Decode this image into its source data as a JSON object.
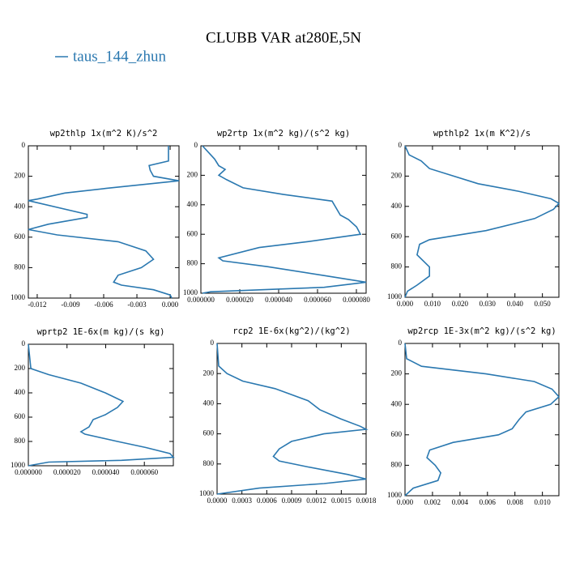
{
  "title": "CLUBB VAR at280E,5N",
  "legend": {
    "name": "taus_144_zhun",
    "color": "#2a78b0"
  },
  "chart_data": [
    {
      "type": "line",
      "title": "wp2thlp  1x(m^2 K)/s^2",
      "y": [
        0,
        100,
        130,
        160,
        200,
        230,
        280,
        310,
        350,
        360,
        450,
        470,
        515,
        550,
        585,
        630,
        690,
        745,
        800,
        850,
        895,
        915,
        945,
        980,
        1000
      ],
      "x": [
        -0.00015,
        -0.00015,
        -0.0019,
        -0.0018,
        -0.0015,
        0.0008,
        -0.0058,
        -0.0095,
        -0.012,
        -0.0128,
        -0.0075,
        -0.0075,
        -0.011,
        -0.0128,
        -0.0102,
        -0.0047,
        -0.0022,
        -0.0015,
        -0.0026,
        -0.0047,
        -0.0051,
        -0.0044,
        -0.0015,
        0,
        0.00015
      ],
      "xlim": [
        -0.0128,
        0.0008
      ],
      "xticks": [
        -0.012,
        -0.009,
        -0.006,
        -0.003,
        {
          "value": 0,
          "label": "0.000"
        }
      ],
      "ylim": [
        0,
        1000
      ],
      "yticks": [
        0,
        200,
        400,
        600,
        800,
        1000
      ],
      "yreverse": true
    },
    {
      "type": "line",
      "title": "wp2rtp  1x(m^2 kg)/(s^2 kg)",
      "y": [
        0,
        90,
        135,
        160,
        200,
        230,
        285,
        330,
        375,
        470,
        500,
        550,
        600,
        650,
        690,
        760,
        780,
        820,
        880,
        925,
        960,
        975,
        990,
        1000
      ],
      "x": [
        8e-07,
        7.1e-06,
        9.2e-06,
        1.25e-05,
        9.2e-06,
        1.33e-05,
        2.17e-05,
        4.25e-05,
        6.75e-05,
        7.17e-05,
        7.59e-05,
        8.01e-05,
        8.21e-05,
        5.5e-05,
        3e-05,
        9.2e-06,
        1.13e-05,
        3.42e-05,
        6.34e-05,
        8.5e-05,
        6.34e-05,
        3.42e-05,
        5e-06,
        8e-07
      ],
      "xlim": [
        0,
        8.5e-05
      ],
      "xticks": [
        {
          "value": 0,
          "label": "0.000000"
        },
        {
          "value": 2e-05,
          "label": "0.000020"
        },
        {
          "value": 4e-05,
          "label": "0.000040"
        },
        {
          "value": 6e-05,
          "label": "0.000060"
        },
        {
          "value": 8e-05,
          "label": "0.000080"
        }
      ],
      "ylim": [
        0,
        1000
      ],
      "yticks": [
        0,
        200,
        400,
        600,
        800,
        1000
      ],
      "yreverse": true
    },
    {
      "type": "line",
      "title": "wpthlp2  1x(m K^2)/s",
      "y": [
        0,
        60,
        100,
        150,
        250,
        300,
        350,
        380,
        420,
        480,
        560,
        620,
        650,
        720,
        800,
        860,
        920,
        960,
        1000
      ],
      "x": [
        0,
        0.0015,
        0.0059,
        0.0089,
        0.0266,
        0.0413,
        0.0531,
        0.056,
        0.054,
        0.0472,
        0.0295,
        0.0089,
        0.0053,
        0.0044,
        0.0089,
        0.0089,
        0.0044,
        0.0009,
        0
      ],
      "xlim": [
        0,
        0.056
      ],
      "xticks": [
        {
          "value": 0,
          "label": "0.000"
        },
        {
          "value": 0.01,
          "label": "0.010"
        },
        {
          "value": 0.02,
          "label": "0.020"
        },
        {
          "value": 0.03,
          "label": "0.030"
        },
        {
          "value": 0.04,
          "label": "0.040"
        },
        {
          "value": 0.05,
          "label": "0.050"
        }
      ],
      "ylim": [
        0,
        1000
      ],
      "yticks": [
        0,
        200,
        400,
        600,
        800,
        1000
      ],
      "yreverse": true
    },
    {
      "type": "line",
      "title": "wprtp2  1E-6x(m kg)/(s kg)",
      "y": [
        0,
        200,
        250,
        320,
        400,
        470,
        520,
        580,
        620,
        680,
        720,
        740,
        800,
        850,
        900,
        930,
        955,
        970,
        1000
      ],
      "x": [
        0,
        1.3e-06,
        1.05e-05,
        2.72e-05,
        3.98e-05,
        4.9e-05,
        4.61e-05,
        3.98e-05,
        3.35e-05,
        3.14e-05,
        2.72e-05,
        2.93e-05,
        4.61e-05,
        6.08e-05,
        7.33e-05,
        7.5e-05,
        4.82e-05,
        1.05e-05,
        0
      ],
      "xlim": [
        0,
        7.5e-05
      ],
      "xticks": [
        {
          "value": 0,
          "label": "0.000000"
        },
        {
          "value": 2e-05,
          "label": "0.000020"
        },
        {
          "value": 4e-05,
          "label": "0.000040"
        },
        {
          "value": 6e-05,
          "label": "0.000060"
        }
      ],
      "ylim": [
        0,
        1000
      ],
      "yticks": [
        0,
        200,
        400,
        600,
        800,
        1000
      ],
      "yreverse": true
    },
    {
      "type": "line",
      "title": "rcp2  1E-6x(kg^2)/(kg^2)",
      "y": [
        0,
        150,
        200,
        250,
        300,
        380,
        440,
        500,
        550,
        570,
        600,
        650,
        700,
        750,
        780,
        820,
        870,
        900,
        930,
        960,
        1000
      ],
      "x": [
        0,
        2e-05,
        0.00012,
        0.00031,
        0.0007,
        0.0011,
        0.00124,
        0.00149,
        0.00173,
        0.0018,
        0.00129,
        0.0009,
        0.00075,
        0.00068,
        0.00075,
        0.0011,
        0.00158,
        0.0018,
        0.00129,
        0.00051,
        0
      ],
      "xlim": [
        0,
        0.0018
      ],
      "xticks": [
        {
          "value": 0,
          "label": "0.0000"
        },
        0.0003,
        0.0006,
        0.0009,
        0.0012,
        0.0015,
        0.0018
      ],
      "ylim": [
        0,
        1000
      ],
      "yticks": [
        0,
        200,
        400,
        600,
        800,
        1000
      ],
      "yreverse": true
    },
    {
      "type": "line",
      "title": "wp2rcp  1E-3x(m^2 kg)/(s^2 kg)",
      "y": [
        0,
        100,
        150,
        200,
        250,
        300,
        350,
        400,
        450,
        500,
        560,
        600,
        650,
        700,
        750,
        800,
        850,
        900,
        950,
        1000
      ],
      "x": [
        0,
        0.00012,
        0.0012,
        0.0059,
        0.0094,
        0.0107,
        0.0112,
        0.0106,
        0.0088,
        0.0083,
        0.0078,
        0.0068,
        0.0035,
        0.0018,
        0.0016,
        0.0022,
        0.0026,
        0.0024,
        0.0006,
        0
      ],
      "xlim": [
        0,
        0.0112
      ],
      "xticks": [
        {
          "value": 0,
          "label": "0.000"
        },
        0.002,
        0.004,
        0.006,
        0.008,
        {
          "value": 0.01,
          "label": "0.010"
        }
      ],
      "ylim": [
        0,
        1000
      ],
      "yticks": [
        0,
        200,
        400,
        600,
        800,
        1000
      ],
      "yreverse": true
    }
  ]
}
